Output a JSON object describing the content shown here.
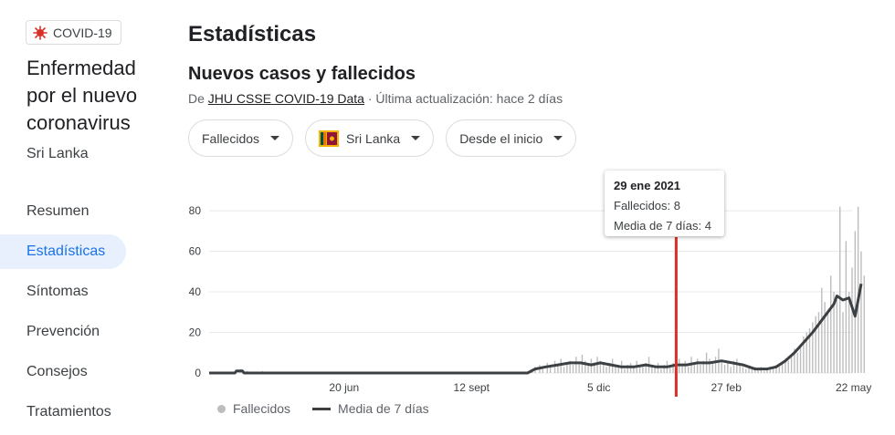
{
  "sidebar": {
    "chip_label": "COVID-19",
    "title": "Enfermedad por el nuevo coronavirus",
    "subtitle": "Sri Lanka",
    "nav": [
      {
        "label": "Resumen"
      },
      {
        "label": "Estadísticas"
      },
      {
        "label": "Síntomas"
      },
      {
        "label": "Prevención"
      },
      {
        "label": "Consejos"
      },
      {
        "label": "Tratamientos"
      }
    ],
    "active_index": 1
  },
  "main": {
    "page_title": "Estadísticas",
    "section_title": "Nuevos casos y fallecidos",
    "source_prefix": "De ",
    "source_link": "JHU CSSE COVID-19 Data",
    "source_suffix": " · Última actualización: hace 2 días"
  },
  "filters": {
    "metric": "Fallecidos",
    "country": "Sri Lanka",
    "range": "Desde el inicio"
  },
  "tooltip": {
    "date": "29 ene 2021",
    "line1": "Fallecidos: 8",
    "line2": "Media de 7 días: 4"
  },
  "legend": {
    "bars_label": "Fallecidos",
    "line_label": "Media de 7 días"
  },
  "colors": {
    "bar": "#bdbdbd",
    "line": "#3c4043",
    "cursor": "#d93025",
    "active_nav": "#1a73e8",
    "grid": "#e8eaed"
  },
  "chart_data": {
    "type": "bar",
    "y_ticks": [
      0,
      20,
      40,
      60,
      80
    ],
    "ylim": [
      0,
      85
    ],
    "x_tick_labels": [
      "20 jun",
      "12 sept",
      "5 dic",
      "27 feb",
      "22 may"
    ],
    "x_tick_days": [
      89,
      173,
      257,
      341,
      425
    ],
    "total_days": 424,
    "cursor_day": 308,
    "series": [
      {
        "name": "Fallecidos",
        "kind": "bars",
        "points": [
          [
            0,
            0
          ],
          [
            20,
            1
          ],
          [
            21,
            2
          ],
          [
            22,
            0
          ],
          [
            25,
            1
          ],
          [
            30,
            0
          ],
          [
            35,
            1
          ],
          [
            45,
            0
          ],
          [
            60,
            0
          ],
          [
            90,
            0
          ],
          [
            120,
            0
          ],
          [
            150,
            0
          ],
          [
            175,
            0
          ],
          [
            200,
            0
          ],
          [
            210,
            0
          ],
          [
            211,
            1
          ],
          [
            213,
            2
          ],
          [
            215,
            3
          ],
          [
            218,
            4
          ],
          [
            220,
            2
          ],
          [
            223,
            5
          ],
          [
            225,
            3
          ],
          [
            228,
            6
          ],
          [
            230,
            4
          ],
          [
            232,
            7
          ],
          [
            234,
            3
          ],
          [
            236,
            5
          ],
          [
            238,
            6
          ],
          [
            240,
            4
          ],
          [
            242,
            8
          ],
          [
            244,
            5
          ],
          [
            246,
            9
          ],
          [
            248,
            6
          ],
          [
            250,
            4
          ],
          [
            252,
            7
          ],
          [
            254,
            5
          ],
          [
            256,
            8
          ],
          [
            258,
            6
          ],
          [
            260,
            4
          ],
          [
            262,
            3
          ],
          [
            264,
            5
          ],
          [
            266,
            7
          ],
          [
            268,
            4
          ],
          [
            270,
            3
          ],
          [
            272,
            6
          ],
          [
            274,
            2
          ],
          [
            276,
            4
          ],
          [
            278,
            5
          ],
          [
            280,
            3
          ],
          [
            282,
            6
          ],
          [
            284,
            4
          ],
          [
            286,
            3
          ],
          [
            288,
            5
          ],
          [
            290,
            8
          ],
          [
            292,
            4
          ],
          [
            294,
            3
          ],
          [
            296,
            5
          ],
          [
            298,
            2
          ],
          [
            300,
            4
          ],
          [
            302,
            6
          ],
          [
            304,
            3
          ],
          [
            306,
            5
          ],
          [
            308,
            8
          ],
          [
            310,
            7
          ],
          [
            312,
            4
          ],
          [
            314,
            6
          ],
          [
            316,
            3
          ],
          [
            318,
            8
          ],
          [
            320,
            5
          ],
          [
            322,
            7
          ],
          [
            324,
            4
          ],
          [
            326,
            6
          ],
          [
            328,
            10
          ],
          [
            330,
            7
          ],
          [
            332,
            5
          ],
          [
            334,
            8
          ],
          [
            336,
            12
          ],
          [
            338,
            6
          ],
          [
            340,
            4
          ],
          [
            342,
            5
          ],
          [
            344,
            3
          ],
          [
            346,
            6
          ],
          [
            348,
            7
          ],
          [
            350,
            4
          ],
          [
            352,
            3
          ],
          [
            354,
            2
          ],
          [
            356,
            3
          ],
          [
            358,
            2
          ],
          [
            360,
            3
          ],
          [
            362,
            2
          ],
          [
            364,
            3
          ],
          [
            366,
            1
          ],
          [
            368,
            2
          ],
          [
            370,
            3
          ],
          [
            372,
            2
          ],
          [
            374,
            4
          ],
          [
            376,
            3
          ],
          [
            378,
            5
          ],
          [
            380,
            7
          ],
          [
            382,
            6
          ],
          [
            384,
            9
          ],
          [
            386,
            12
          ],
          [
            388,
            10
          ],
          [
            390,
            14
          ],
          [
            392,
            18
          ],
          [
            394,
            20
          ],
          [
            396,
            22
          ],
          [
            398,
            25
          ],
          [
            400,
            28
          ],
          [
            402,
            30
          ],
          [
            404,
            42
          ],
          [
            406,
            35
          ],
          [
            408,
            30
          ],
          [
            410,
            48
          ],
          [
            412,
            40
          ],
          [
            414,
            36
          ],
          [
            416,
            82
          ],
          [
            418,
            30
          ],
          [
            420,
            65
          ],
          [
            422,
            40
          ],
          [
            424,
            52
          ],
          [
            426,
            70
          ],
          [
            428,
            82
          ],
          [
            430,
            60
          ],
          [
            432,
            48
          ]
        ]
      },
      {
        "name": "Media de 7 días",
        "kind": "line",
        "points": [
          [
            0,
            0
          ],
          [
            10,
            0
          ],
          [
            17,
            0
          ],
          [
            18,
            1
          ],
          [
            22,
            1
          ],
          [
            23,
            0
          ],
          [
            60,
            0
          ],
          [
            120,
            0
          ],
          [
            210,
            0
          ],
          [
            215,
            2
          ],
          [
            222,
            3
          ],
          [
            230,
            4
          ],
          [
            238,
            5
          ],
          [
            245,
            5
          ],
          [
            252,
            4
          ],
          [
            258,
            5
          ],
          [
            265,
            4
          ],
          [
            272,
            3
          ],
          [
            280,
            3
          ],
          [
            288,
            4
          ],
          [
            295,
            3
          ],
          [
            302,
            3
          ],
          [
            308,
            4
          ],
          [
            315,
            4
          ],
          [
            322,
            5
          ],
          [
            330,
            5
          ],
          [
            338,
            6
          ],
          [
            345,
            5
          ],
          [
            352,
            4
          ],
          [
            360,
            2
          ],
          [
            368,
            2
          ],
          [
            374,
            3
          ],
          [
            380,
            6
          ],
          [
            386,
            10
          ],
          [
            392,
            15
          ],
          [
            398,
            20
          ],
          [
            404,
            26
          ],
          [
            408,
            30
          ],
          [
            412,
            34
          ],
          [
            414,
            38
          ],
          [
            418,
            36
          ],
          [
            422,
            37
          ],
          [
            426,
            28
          ],
          [
            430,
            44
          ]
        ]
      }
    ]
  }
}
